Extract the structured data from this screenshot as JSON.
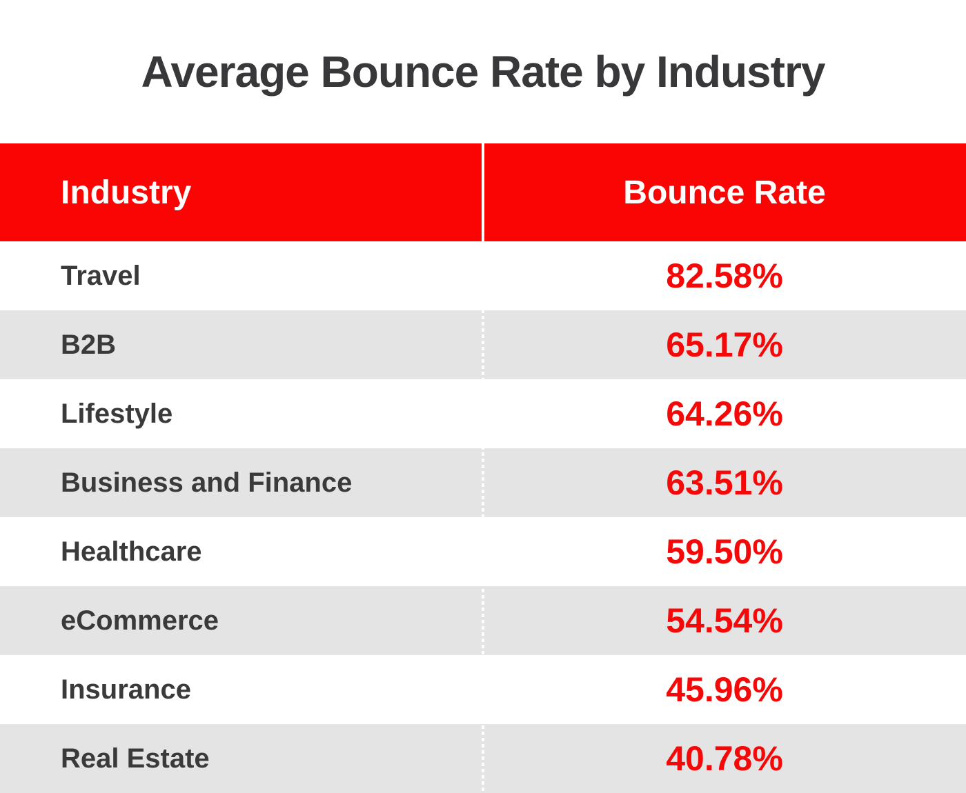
{
  "title": "Average Bounce Rate by Industry",
  "table": {
    "header": {
      "industry": "Industry",
      "bounce_rate": "Bounce Rate"
    },
    "rows": [
      {
        "industry": "Travel",
        "bounce_rate": "82.58%"
      },
      {
        "industry": "B2B",
        "bounce_rate": "65.17%"
      },
      {
        "industry": "Lifestyle",
        "bounce_rate": "64.26%"
      },
      {
        "industry": "Business and Finance",
        "bounce_rate": "63.51%"
      },
      {
        "industry": "Healthcare",
        "bounce_rate": "59.50%"
      },
      {
        "industry": "eCommerce",
        "bounce_rate": "54.54%"
      },
      {
        "industry": "Insurance",
        "bounce_rate": "45.96%"
      },
      {
        "industry": "Real Estate",
        "bounce_rate": "40.78%"
      }
    ]
  },
  "colors": {
    "header-bg": "#FA0404",
    "value-text": "#F50808",
    "header-text": "#FFFFFF",
    "label-text": "#3A3A3A",
    "title-text": "#38383A",
    "row-alt": "#E4E4E4"
  },
  "chart_data": {
    "type": "table",
    "title": "Average Bounce Rate by Industry",
    "columns": [
      "Industry",
      "Bounce Rate"
    ],
    "categories": [
      "Travel",
      "B2B",
      "Lifestyle",
      "Business and Finance",
      "Healthcare",
      "eCommerce",
      "Insurance",
      "Real Estate"
    ],
    "values": [
      82.58,
      65.17,
      64.26,
      63.51,
      59.5,
      54.54,
      45.96,
      40.78
    ],
    "value_format": "percent",
    "legend": "none",
    "grid": "off"
  }
}
